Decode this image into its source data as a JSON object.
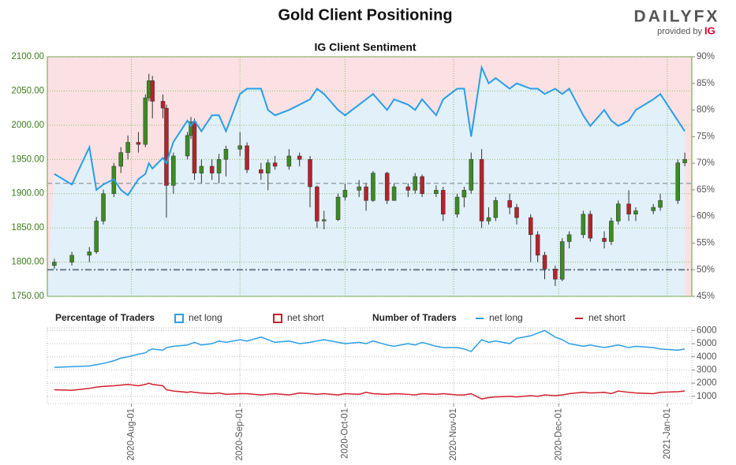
{
  "logo": {
    "brand": "DAILYFX",
    "provided_by": "provided by",
    "ig": "IG"
  },
  "chart_data": [
    {
      "type": "candlestick",
      "title": "Gold Client Positioning",
      "subtitle": "IG Client Sentiment",
      "x": [
        "2020-07-10",
        "2020-07-15",
        "2020-07-20",
        "2020-07-22",
        "2020-07-24",
        "2020-07-27",
        "2020-07-29",
        "2020-07-31",
        "2020-08-03",
        "2020-08-05",
        "2020-08-06",
        "2020-08-07",
        "2020-08-10",
        "2020-08-11",
        "2020-08-13",
        "2020-08-17",
        "2020-08-18",
        "2020-08-19",
        "2020-08-21",
        "2020-08-24",
        "2020-08-26",
        "2020-08-28",
        "2020-09-01",
        "2020-09-03",
        "2020-09-07",
        "2020-09-09",
        "2020-09-11",
        "2020-09-15",
        "2020-09-18",
        "2020-09-21",
        "2020-09-23",
        "2020-09-25",
        "2020-09-29",
        "2020-10-01",
        "2020-10-05",
        "2020-10-07",
        "2020-10-09",
        "2020-10-13",
        "2020-10-15",
        "2020-10-19",
        "2020-10-21",
        "2020-10-23",
        "2020-10-27",
        "2020-10-29",
        "2020-11-02",
        "2020-11-04",
        "2020-11-06",
        "2020-11-09",
        "2020-11-11",
        "2020-11-13",
        "2020-11-17",
        "2020-11-19",
        "2020-11-23",
        "2020-11-25",
        "2020-11-27",
        "2020-11-30",
        "2020-12-02",
        "2020-12-04",
        "2020-12-08",
        "2020-12-10",
        "2020-12-14",
        "2020-12-16",
        "2020-12-18",
        "2020-12-21",
        "2020-12-23",
        "2020-12-28",
        "2020-12-30",
        "2021-01-04",
        "2021-01-06"
      ],
      "open": [
        1795,
        1800,
        1810,
        1815,
        1860,
        1900,
        1940,
        1960,
        1975,
        1972,
        2040,
        2065,
        2035,
        2025,
        1912,
        1955,
        1985,
        2005,
        1930,
        1940,
        1930,
        1950,
        1965,
        1970,
        1935,
        1930,
        1945,
        1940,
        1955,
        1950,
        1910,
        1860,
        1862,
        1895,
        1905,
        1910,
        1890,
        1930,
        1890,
        1910,
        1905,
        1925,
        1900,
        1905,
        1870,
        1895,
        1905,
        1950,
        1860,
        1865,
        1890,
        1880,
        1865,
        1840,
        1810,
        1790,
        1775,
        1830,
        1840,
        1870,
        1835,
        1830,
        1860,
        1885,
        1870,
        1875,
        1880,
        1890,
        1945
      ],
      "high": [
        1805,
        1815,
        1822,
        1866,
        1906,
        1945,
        1968,
        1985,
        1990,
        2045,
        2075,
        2072,
        2045,
        2030,
        1960,
        1990,
        2012,
        2010,
        1950,
        1950,
        1958,
        1970,
        1990,
        1975,
        1945,
        1950,
        1955,
        1965,
        1960,
        1955,
        1912,
        1875,
        1900,
        1915,
        1920,
        1915,
        1933,
        1932,
        1915,
        1915,
        1930,
        1928,
        1912,
        1910,
        1900,
        1910,
        1960,
        1965,
        1880,
        1895,
        1900,
        1885,
        1870,
        1845,
        1815,
        1795,
        1835,
        1845,
        1875,
        1875,
        1845,
        1865,
        1890,
        1905,
        1880,
        1885,
        1900,
        1950,
        1960
      ],
      "low": [
        1790,
        1795,
        1800,
        1812,
        1855,
        1895,
        1930,
        1950,
        1960,
        1968,
        2035,
        2010,
        2010,
        1865,
        1900,
        1950,
        1980,
        1920,
        1915,
        1920,
        1915,
        1925,
        1955,
        1930,
        1920,
        1905,
        1935,
        1935,
        1940,
        1880,
        1850,
        1848,
        1860,
        1890,
        1895,
        1875,
        1888,
        1885,
        1890,
        1895,
        1900,
        1895,
        1895,
        1860,
        1865,
        1880,
        1900,
        1850,
        1855,
        1860,
        1870,
        1855,
        1800,
        1800,
        1775,
        1765,
        1772,
        1820,
        1835,
        1830,
        1820,
        1825,
        1855,
        1860,
        1860,
        1870,
        1875,
        1885,
        1940
      ],
      "close": [
        1800,
        1810,
        1815,
        1860,
        1900,
        1940,
        1960,
        1975,
        1972,
        2040,
        2065,
        2035,
        2025,
        1912,
        1955,
        1985,
        2005,
        1930,
        1940,
        1930,
        1950,
        1965,
        1970,
        1935,
        1930,
        1945,
        1940,
        1955,
        1950,
        1910,
        1860,
        1862,
        1895,
        1905,
        1910,
        1890,
        1930,
        1890,
        1910,
        1905,
        1925,
        1900,
        1905,
        1870,
        1895,
        1905,
        1950,
        1860,
        1865,
        1890,
        1880,
        1865,
        1840,
        1810,
        1790,
        1775,
        1830,
        1840,
        1870,
        1835,
        1830,
        1860,
        1885,
        1870,
        1875,
        1880,
        1890,
        1945,
        1950
      ],
      "up_color": "#3d8b22",
      "down_color": "#b5232b",
      "series": [
        {
          "name": "net long",
          "color": "#2a9fe6",
          "axis": "y2",
          "values": [
            68,
            66,
            73,
            65,
            66,
            67,
            65,
            64,
            67,
            68,
            70,
            69,
            71,
            70,
            74,
            78,
            77,
            78,
            76,
            79,
            79,
            76,
            83,
            84,
            84,
            80,
            79,
            80,
            81,
            82,
            84,
            83,
            80,
            79,
            81,
            82,
            83,
            80,
            82,
            81,
            80,
            82,
            79,
            82,
            84,
            84,
            75,
            88,
            85,
            86,
            84,
            85,
            84,
            84,
            83,
            84,
            83,
            84,
            79,
            77,
            80,
            78,
            77,
            78,
            80,
            82,
            83,
            78,
            76
          ]
        }
      ],
      "legend": {
        "title": "Percentage of Traders",
        "entries": [
          {
            "name": "net long",
            "color": "#2a9fe6",
            "fill": "#e2f0fa"
          },
          {
            "name": "net short",
            "color": "#c8202f",
            "fill": "#fbe1e4"
          }
        ]
      },
      "reference_lines": [
        {
          "axis": "y",
          "value": 1915
        },
        {
          "axis": "y2",
          "value": 50
        }
      ],
      "xlim": [
        "2020-07-08",
        "2021-01-08"
      ],
      "ylim": [
        1750,
        2100
      ],
      "yticks": [
        {
          "value": 1750,
          "label": "1750.00"
        },
        {
          "value": 1800,
          "label": "1800.00"
        },
        {
          "value": 1850,
          "label": "1850.00"
        },
        {
          "value": 1900,
          "label": "1900.00"
        },
        {
          "value": 1950,
          "label": "1950.00"
        },
        {
          "value": 2000,
          "label": "2000.00"
        },
        {
          "value": 2050,
          "label": "2050.00"
        },
        {
          "value": 2100,
          "label": "2100.00"
        }
      ],
      "y2lim": [
        45,
        90
      ],
      "y2ticks": [
        {
          "value": 45,
          "label": "45%"
        },
        {
          "value": 50,
          "label": "50%"
        },
        {
          "value": 55,
          "label": "55%"
        },
        {
          "value": 60,
          "label": "60%"
        },
        {
          "value": 65,
          "label": "65%"
        },
        {
          "value": 70,
          "label": "70%"
        },
        {
          "value": 75,
          "label": "75%"
        },
        {
          "value": 80,
          "label": "80%"
        },
        {
          "value": 85,
          "label": "85%"
        },
        {
          "value": 90,
          "label": "90%"
        }
      ],
      "grid": true
    },
    {
      "type": "line",
      "legend": {
        "title": "Number of Traders"
      },
      "x": [
        "2020-07-10",
        "2020-07-15",
        "2020-07-20",
        "2020-07-22",
        "2020-07-24",
        "2020-07-27",
        "2020-07-29",
        "2020-07-31",
        "2020-08-03",
        "2020-08-05",
        "2020-08-06",
        "2020-08-07",
        "2020-08-10",
        "2020-08-11",
        "2020-08-13",
        "2020-08-17",
        "2020-08-18",
        "2020-08-19",
        "2020-08-21",
        "2020-08-24",
        "2020-08-26",
        "2020-08-28",
        "2020-09-01",
        "2020-09-03",
        "2020-09-07",
        "2020-09-09",
        "2020-09-11",
        "2020-09-15",
        "2020-09-18",
        "2020-09-21",
        "2020-09-23",
        "2020-09-25",
        "2020-09-29",
        "2020-10-01",
        "2020-10-05",
        "2020-10-07",
        "2020-10-09",
        "2020-10-13",
        "2020-10-15",
        "2020-10-19",
        "2020-10-21",
        "2020-10-23",
        "2020-10-27",
        "2020-10-29",
        "2020-11-02",
        "2020-11-04",
        "2020-11-06",
        "2020-11-09",
        "2020-11-11",
        "2020-11-13",
        "2020-11-17",
        "2020-11-19",
        "2020-11-23",
        "2020-11-25",
        "2020-11-27",
        "2020-11-30",
        "2020-12-02",
        "2020-12-04",
        "2020-12-08",
        "2020-12-10",
        "2020-12-14",
        "2020-12-16",
        "2020-12-18",
        "2020-12-21",
        "2020-12-23",
        "2020-12-28",
        "2020-12-30",
        "2021-01-04",
        "2021-01-06"
      ],
      "series": [
        {
          "name": "net long",
          "color": "#2a9fe6",
          "values": [
            3200,
            3250,
            3300,
            3400,
            3500,
            3700,
            3900,
            4000,
            4200,
            4300,
            4500,
            4600,
            4500,
            4700,
            4800,
            4900,
            5000,
            5100,
            4900,
            5000,
            5200,
            5100,
            5300,
            5200,
            5500,
            5300,
            5100,
            5200,
            5000,
            5100,
            5200,
            5300,
            5100,
            5000,
            5100,
            5000,
            5200,
            4900,
            4800,
            5000,
            4900,
            5100,
            4800,
            4700,
            4700,
            4600,
            4400,
            5300,
            5100,
            5200,
            5000,
            5400,
            5600,
            5800,
            6000,
            5500,
            5300,
            5000,
            4800,
            4900,
            4700,
            4800,
            4900,
            4700,
            4800,
            4700,
            4600,
            4500,
            4600
          ]
        },
        {
          "name": "net short",
          "color": "#d2202f",
          "values": [
            1500,
            1450,
            1600,
            1700,
            1750,
            1800,
            1850,
            1900,
            1800,
            1900,
            2000,
            1900,
            1800,
            1500,
            1400,
            1300,
            1350,
            1300,
            1250,
            1200,
            1250,
            1150,
            1200,
            1200,
            1100,
            1150,
            1200,
            1100,
            1250,
            1200,
            1150,
            1200,
            1100,
            1200,
            1150,
            1300,
            1200,
            1150,
            1200,
            1150,
            1100,
            1200,
            1150,
            1200,
            1100,
            1100,
            1200,
            800,
            900,
            950,
            1000,
            950,
            1050,
            1000,
            1100,
            1050,
            1100,
            1200,
            1300,
            1250,
            1300,
            1200,
            1400,
            1300,
            1250,
            1200,
            1300,
            1350,
            1400
          ]
        }
      ],
      "xlim": [
        "2020-07-08",
        "2021-01-08"
      ],
      "xticks": [
        {
          "value": "2020-08-01",
          "label": "2020-Aug-01"
        },
        {
          "value": "2020-09-01",
          "label": "2020-Sep-01"
        },
        {
          "value": "2020-10-01",
          "label": "2020-Oct-01"
        },
        {
          "value": "2020-11-01",
          "label": "2020-Nov-01"
        },
        {
          "value": "2020-12-01",
          "label": "2020-Dec-01"
        },
        {
          "value": "2021-01-01",
          "label": "2021-Jan-01"
        }
      ],
      "ylim": [
        450,
        6200
      ],
      "yticks": [
        1000,
        2000,
        3000,
        4000,
        5000,
        6000
      ],
      "grid": true
    }
  ]
}
